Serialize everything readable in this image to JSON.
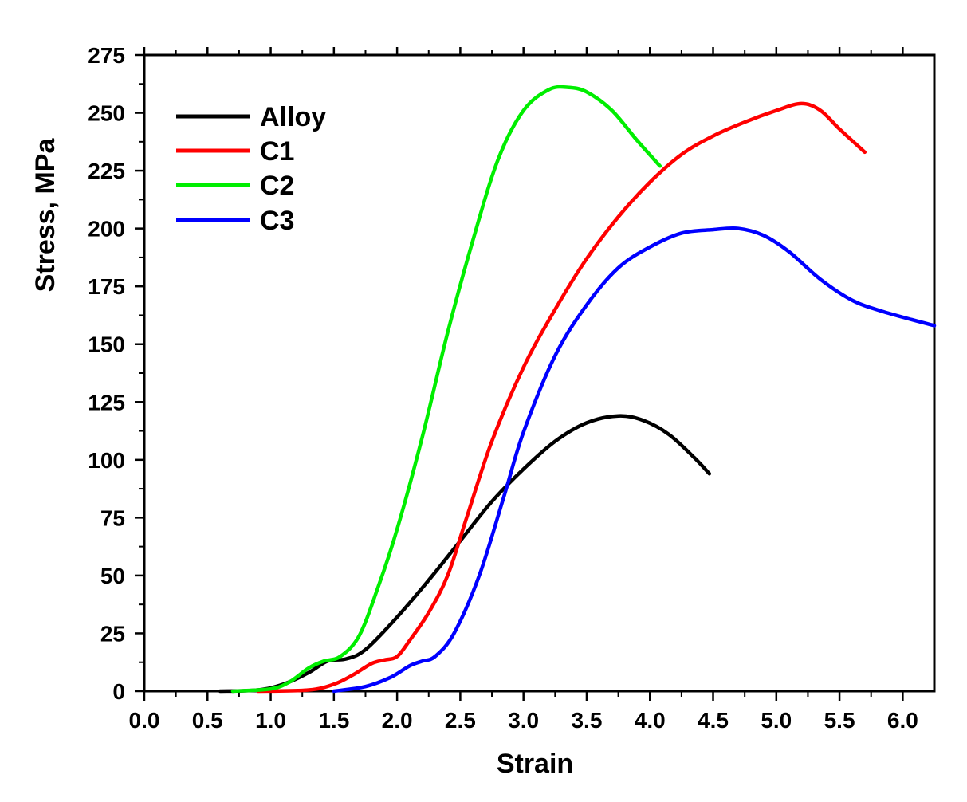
{
  "chart_data": {
    "type": "line",
    "xlabel": "Strain",
    "ylabel": "Stress, MPa",
    "xlim": [
      0,
      6.25
    ],
    "ylim": [
      0,
      275
    ],
    "xticks": [
      "0.0",
      "0.5",
      "1.0",
      "1.5",
      "2.0",
      "2.5",
      "3.0",
      "3.5",
      "4.0",
      "4.5",
      "5.0",
      "5.5",
      "6.0"
    ],
    "yticks": [
      "0",
      "25",
      "50",
      "75",
      "100",
      "125",
      "150",
      "175",
      "200",
      "225",
      "250",
      "275"
    ],
    "legend_position": "top-left",
    "series": [
      {
        "name": "Alloy",
        "color": "#000000",
        "points": [
          [
            0.6,
            0
          ],
          [
            0.9,
            0.5
          ],
          [
            1.1,
            3
          ],
          [
            1.3,
            8
          ],
          [
            1.45,
            13
          ],
          [
            1.6,
            14
          ],
          [
            1.75,
            18
          ],
          [
            2.0,
            32
          ],
          [
            2.25,
            48
          ],
          [
            2.5,
            65
          ],
          [
            2.75,
            82
          ],
          [
            3.0,
            96
          ],
          [
            3.25,
            108
          ],
          [
            3.5,
            116
          ],
          [
            3.75,
            119
          ],
          [
            3.95,
            117
          ],
          [
            4.15,
            111
          ],
          [
            4.35,
            101
          ],
          [
            4.47,
            94
          ]
        ]
      },
      {
        "name": "C1",
        "color": "#ff0000",
        "points": [
          [
            0.9,
            0
          ],
          [
            1.3,
            0.5
          ],
          [
            1.5,
            3
          ],
          [
            1.65,
            7
          ],
          [
            1.8,
            12
          ],
          [
            1.9,
            13.5
          ],
          [
            2.0,
            15
          ],
          [
            2.1,
            22
          ],
          [
            2.25,
            34
          ],
          [
            2.4,
            50
          ],
          [
            2.55,
            75
          ],
          [
            2.75,
            108
          ],
          [
            3.0,
            140
          ],
          [
            3.25,
            165
          ],
          [
            3.5,
            187
          ],
          [
            3.75,
            205
          ],
          [
            4.0,
            220
          ],
          [
            4.25,
            232
          ],
          [
            4.5,
            240
          ],
          [
            4.75,
            246
          ],
          [
            5.0,
            251
          ],
          [
            5.2,
            254
          ],
          [
            5.35,
            251
          ],
          [
            5.5,
            243
          ],
          [
            5.7,
            233
          ]
        ]
      },
      {
        "name": "C2",
        "color": "#00ee00",
        "points": [
          [
            0.7,
            0
          ],
          [
            1.0,
            1
          ],
          [
            1.15,
            4
          ],
          [
            1.3,
            10
          ],
          [
            1.42,
            13
          ],
          [
            1.55,
            15
          ],
          [
            1.7,
            24
          ],
          [
            1.85,
            45
          ],
          [
            2.0,
            70
          ],
          [
            2.2,
            110
          ],
          [
            2.4,
            155
          ],
          [
            2.6,
            195
          ],
          [
            2.8,
            230
          ],
          [
            3.0,
            251
          ],
          [
            3.2,
            260
          ],
          [
            3.35,
            261
          ],
          [
            3.5,
            259
          ],
          [
            3.7,
            251
          ],
          [
            3.9,
            238
          ],
          [
            4.08,
            227
          ]
        ]
      },
      {
        "name": "C3",
        "color": "#0000ff",
        "points": [
          [
            1.5,
            0
          ],
          [
            1.75,
            2
          ],
          [
            1.95,
            6
          ],
          [
            2.1,
            11
          ],
          [
            2.2,
            13
          ],
          [
            2.3,
            15
          ],
          [
            2.45,
            25
          ],
          [
            2.65,
            50
          ],
          [
            2.85,
            85
          ],
          [
            3.0,
            112
          ],
          [
            3.25,
            145
          ],
          [
            3.5,
            167
          ],
          [
            3.75,
            183
          ],
          [
            4.0,
            192
          ],
          [
            4.25,
            198
          ],
          [
            4.5,
            199.5
          ],
          [
            4.7,
            200
          ],
          [
            4.9,
            197
          ],
          [
            5.1,
            190
          ],
          [
            5.35,
            178
          ],
          [
            5.6,
            169
          ],
          [
            5.85,
            164
          ],
          [
            6.25,
            158
          ]
        ]
      }
    ]
  }
}
